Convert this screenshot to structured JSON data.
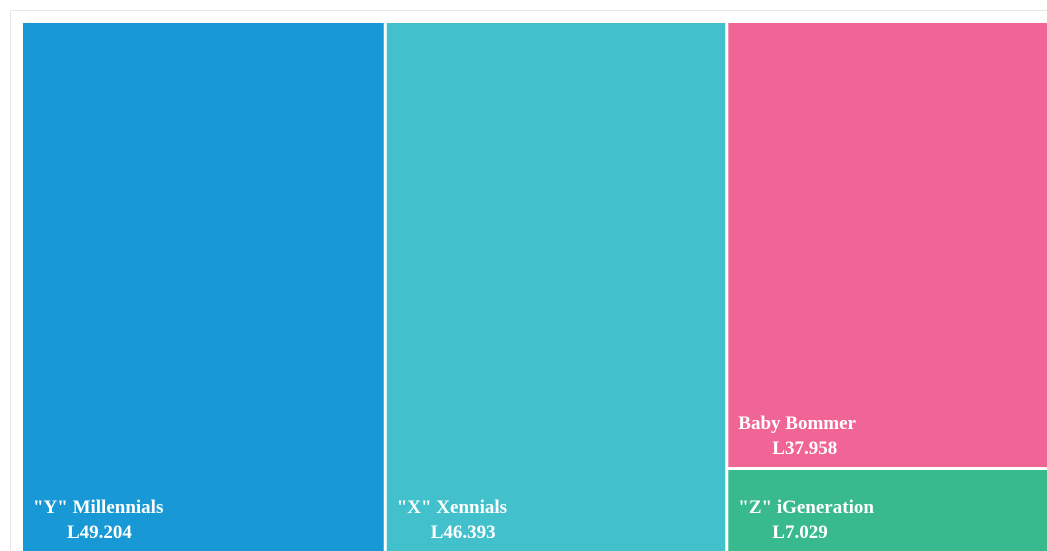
{
  "chart_data": {
    "type": "treemap",
    "title": "",
    "items": [
      {
        "name": "\"Y\" Millennials",
        "value_label": "L49.204",
        "value": 49.204,
        "color": "#1899d6"
      },
      {
        "name": "\"X\" Xennials",
        "value_label": "L46.393",
        "value": 46.393,
        "color": "#42c0cc"
      },
      {
        "name": "Baby Bommer",
        "value_label": "L37.958",
        "value": 37.958,
        "color": "#f06595"
      },
      {
        "name": "\"Z\" iGeneration",
        "value_label": "L7.029",
        "value": 7.029,
        "color": "#38b98e"
      }
    ]
  }
}
